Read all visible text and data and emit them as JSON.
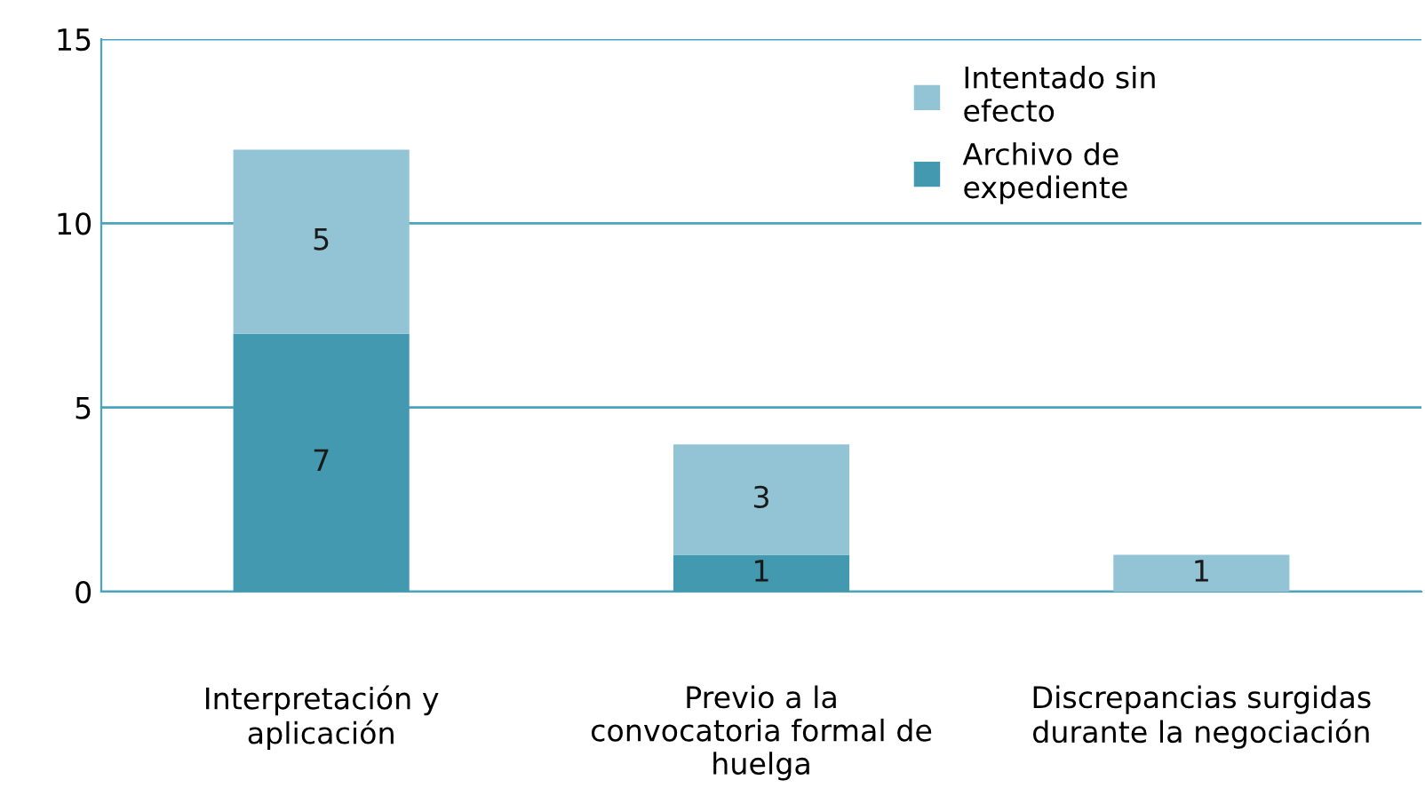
{
  "chart_data": {
    "type": "bar",
    "stacked": true,
    "categories": [
      "Interpretación y aplicación",
      "Previo a la convocatoria formal de huelga",
      "Discrepancias surgidas durante la negociación"
    ],
    "series": [
      {
        "name": "Archivo de expediente",
        "color": "#4399b0",
        "values": [
          7,
          1,
          null
        ]
      },
      {
        "name": "Intentado sin efecto",
        "color": "#92c4d6",
        "values": [
          5,
          3,
          1
        ]
      }
    ],
    "ylim": [
      0,
      15
    ],
    "yticks": [
      0,
      5,
      10,
      15
    ],
    "grid": "y",
    "legend": "top right",
    "data_labels": true
  }
}
